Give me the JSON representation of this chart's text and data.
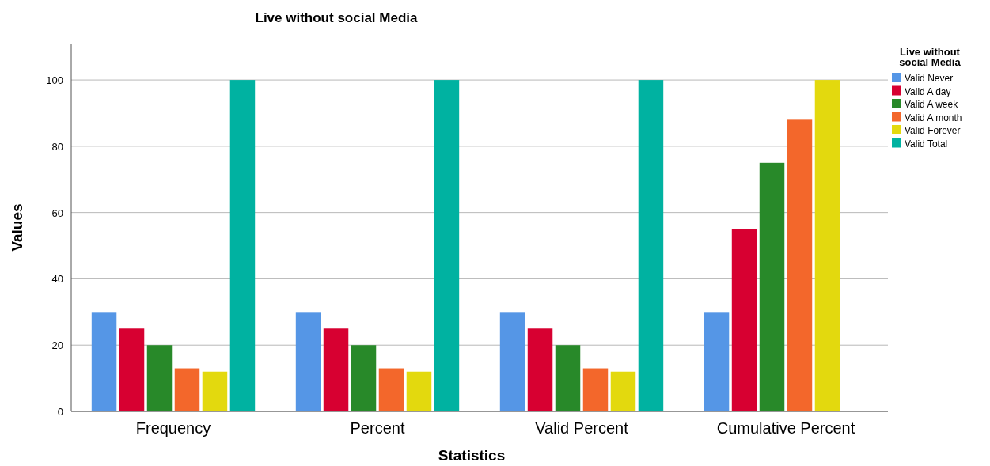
{
  "chart_data": {
    "type": "bar",
    "title": "Live without social Media",
    "xlabel": "Statistics",
    "ylabel": "Values",
    "legend_title": "Live without social Media",
    "categories": [
      "Frequency",
      "Percent",
      "Valid Percent",
      "Cumulative Percent"
    ],
    "series": [
      {
        "name": "Valid Never",
        "color": "#5596e6",
        "values": [
          30,
          30,
          30,
          30
        ]
      },
      {
        "name": "Valid A day",
        "color": "#d70031",
        "values": [
          25,
          25,
          25,
          55
        ]
      },
      {
        "name": "Valid A week",
        "color": "#288929",
        "values": [
          20,
          20,
          20,
          75
        ]
      },
      {
        "name": "Valid A month",
        "color": "#f3672b",
        "values": [
          13,
          13,
          13,
          88
        ]
      },
      {
        "name": "Valid Forever",
        "color": "#e3d90e",
        "values": [
          12,
          12,
          12,
          100
        ]
      },
      {
        "name": "Valid Total",
        "color": "#00b2a1",
        "values": [
          100,
          100,
          100,
          null
        ]
      }
    ],
    "ylim": [
      0,
      111
    ],
    "yticks": [
      0,
      20,
      40,
      60,
      80,
      100
    ],
    "grid": "y",
    "legend": "top right"
  }
}
